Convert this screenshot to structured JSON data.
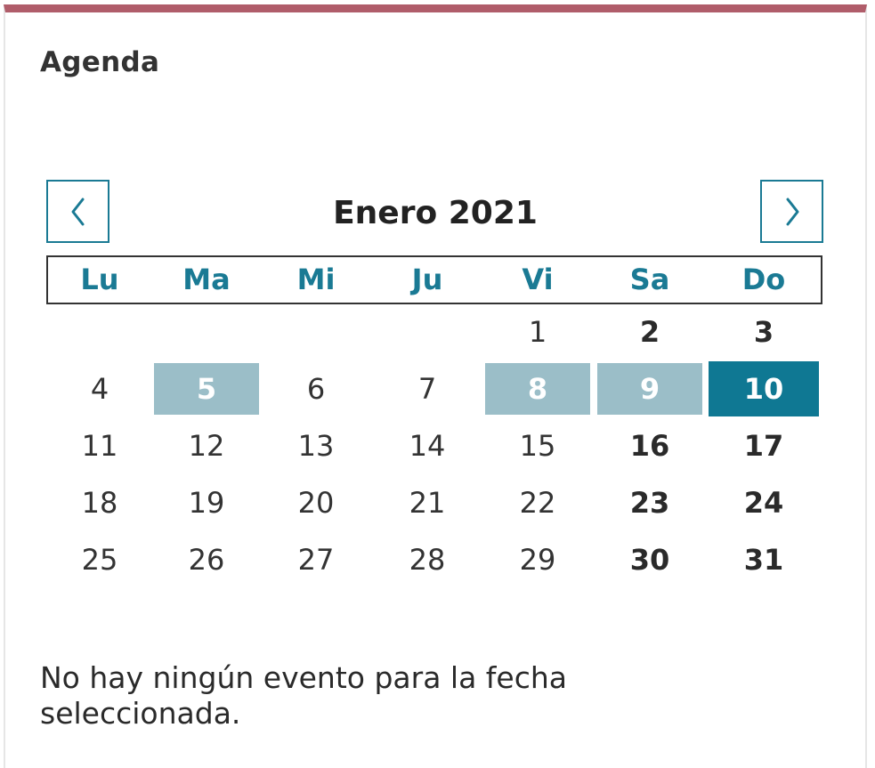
{
  "widget": {
    "title": "Agenda",
    "prev_icon": "chevron-left-icon",
    "next_icon": "chevron-right-icon",
    "accent_color": "#1a7a94",
    "top_bar_color": "#b05d6a"
  },
  "calendar": {
    "month_label": "Enero 2021",
    "weekdays": [
      "Lu",
      "Ma",
      "Mi",
      "Ju",
      "Vi",
      "Sa",
      "Do"
    ],
    "first_weekday_index": 4,
    "days_in_month": 31,
    "event_days": [
      5,
      8,
      9
    ],
    "selected_day": 10,
    "event_color": "#9bbec8",
    "selected_color": "#0f7893"
  },
  "events": {
    "empty_message": "No hay ningún evento para la fecha seleccionada."
  }
}
